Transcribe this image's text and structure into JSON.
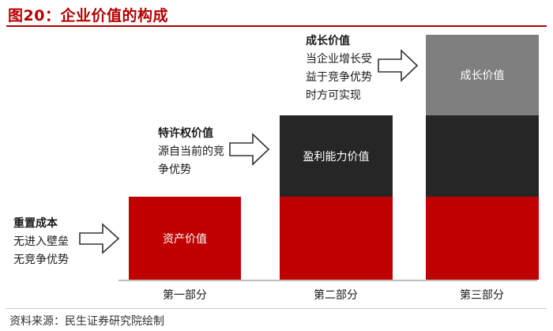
{
  "title": "图20：企业价值的构成",
  "source": "资料来源：民生证券研究院绘制",
  "colors": {
    "title_red": "#b50000",
    "asset_red": "#c00000",
    "franchise_dark": "#262626",
    "growth_gray": "#7f7f7f"
  },
  "blocks": {
    "asset": "资产价值",
    "franchise": "盈利能力价值",
    "growth": "成长价值"
  },
  "columns": [
    "第一部分",
    "第二部分",
    "第三部分"
  ],
  "notes": [
    {
      "head": "重置成本",
      "lines": [
        "无进入壁垒",
        "无竞争优势"
      ]
    },
    {
      "head": "特许权价值",
      "lines": [
        "源自当前的竞",
        "争优势"
      ]
    },
    {
      "head": "成长价值",
      "lines": [
        "当企业增长受",
        "益于竞争优势",
        "时方可实现"
      ]
    }
  ],
  "icons": {
    "arrow": "right-arrow-outline-icon"
  }
}
